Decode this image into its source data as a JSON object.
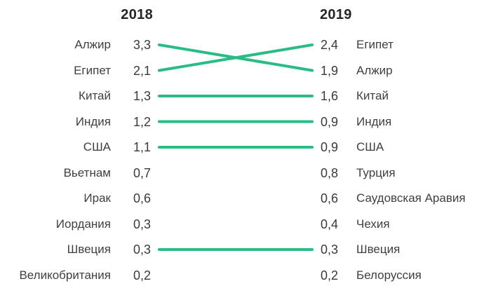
{
  "colors": {
    "line": "#29bd85",
    "label_text": "#3f3f3f",
    "header_text": "#262626",
    "background": "#ffffff"
  },
  "left": {
    "header": "2018",
    "rows": [
      {
        "label": "Алжир",
        "value": "3,3"
      },
      {
        "label": "Египет",
        "value": "2,1"
      },
      {
        "label": "Китай",
        "value": "1,3"
      },
      {
        "label": "Индия",
        "value": "1,2"
      },
      {
        "label": "США",
        "value": "1,1"
      },
      {
        "label": "Вьетнам",
        "value": "0,7"
      },
      {
        "label": "Ирак",
        "value": "0,6"
      },
      {
        "label": "Иордания",
        "value": "0,3"
      },
      {
        "label": "Швеция",
        "value": "0,3"
      },
      {
        "label": "Великобритания",
        "value": "0,2"
      }
    ]
  },
  "right": {
    "header": "2019",
    "rows": [
      {
        "label": "Египет",
        "value": "2,4"
      },
      {
        "label": "Алжир",
        "value": "1,9"
      },
      {
        "label": "Китай",
        "value": "1,6"
      },
      {
        "label": "Индия",
        "value": "0,9"
      },
      {
        "label": "США",
        "value": "0,9"
      },
      {
        "label": "Турция",
        "value": "0,8"
      },
      {
        "label": "Саудовская Аравия",
        "value": "0,6"
      },
      {
        "label": "Чехия",
        "value": "0,4"
      },
      {
        "label": "Швеция",
        "value": "0,3"
      },
      {
        "label": "Белоруссия",
        "value": "0,2"
      }
    ]
  },
  "connections": [
    {
      "country": "Алжир",
      "from_row": 1,
      "to_row": 2
    },
    {
      "country": "Египет",
      "from_row": 2,
      "to_row": 1
    },
    {
      "country": "Китай",
      "from_row": 3,
      "to_row": 3
    },
    {
      "country": "Индия",
      "from_row": 4,
      "to_row": 4
    },
    {
      "country": "США",
      "from_row": 5,
      "to_row": 5
    },
    {
      "country": "Швеция",
      "from_row": 9,
      "to_row": 9
    }
  ],
  "chart_data": {
    "type": "line",
    "subtype": "slopegraph",
    "columns": [
      "2018",
      "2019"
    ],
    "decimal_separator": ",",
    "line_color": "#29bd85",
    "series": [
      {
        "name": "Алжир",
        "values": [
          3.3,
          1.9
        ]
      },
      {
        "name": "Египет",
        "values": [
          2.1,
          2.4
        ]
      },
      {
        "name": "Китай",
        "values": [
          1.3,
          1.6
        ]
      },
      {
        "name": "Индия",
        "values": [
          1.2,
          0.9
        ]
      },
      {
        "name": "США",
        "values": [
          1.1,
          0.9
        ]
      },
      {
        "name": "Вьетнам",
        "values": [
          0.7,
          null
        ]
      },
      {
        "name": "Ирак",
        "values": [
          0.6,
          null
        ]
      },
      {
        "name": "Иордания",
        "values": [
          0.3,
          null
        ]
      },
      {
        "name": "Швеция",
        "values": [
          0.3,
          0.3
        ]
      },
      {
        "name": "Великобритания",
        "values": [
          0.2,
          null
        ]
      },
      {
        "name": "Турция",
        "values": [
          null,
          0.8
        ]
      },
      {
        "name": "Саудовская Аравия",
        "values": [
          null,
          0.6
        ]
      },
      {
        "name": "Чехия",
        "values": [
          null,
          0.4
        ]
      },
      {
        "name": "Белоруссия",
        "values": [
          null,
          0.2
        ]
      }
    ]
  }
}
